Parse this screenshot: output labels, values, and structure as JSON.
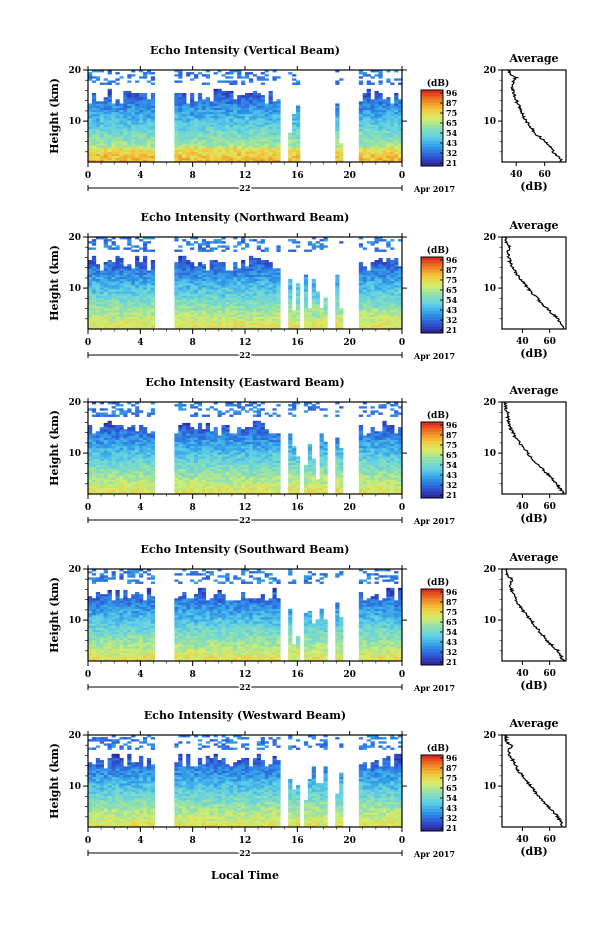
{
  "figure": {
    "xlabel": "Local Time",
    "date_main": "22",
    "date_suffix": "Apr 2017",
    "ylabel": "Height (km)",
    "colorbar_unit": "(dB)",
    "avg_title": "Average",
    "avg_xlabel": "(dB)"
  },
  "colors": {
    "colormap": [
      "#2a1f8f",
      "#2f58d8",
      "#2f9ae8",
      "#5fd0e8",
      "#8ee0b0",
      "#d6ee6a",
      "#f3c63a",
      "#ee7a24",
      "#d8201c"
    ]
  },
  "chart_data": [
    {
      "type": "heatmap",
      "title": "Echo Intensity (Vertical Beam)",
      "x_ticks": [
        "0",
        "4",
        "8",
        "12",
        "16",
        "20",
        "0"
      ],
      "y_ticks": [
        "20",
        "10"
      ],
      "xlim": [
        0,
        24
      ],
      "ylim": [
        2,
        20
      ],
      "colorbar_ticks": [
        "96",
        "87",
        "75",
        "65",
        "54",
        "43",
        "32",
        "21"
      ],
      "profile": {
        "type": "line",
        "x_ticks": [
          "40",
          "60"
        ],
        "y_ticks": [
          "20",
          "10"
        ],
        "xlim": [
          30,
          75
        ],
        "ylim": [
          2,
          20
        ],
        "x": [
          72,
          70,
          66,
          64,
          60,
          56,
          52,
          50,
          47,
          45,
          44,
          42,
          40,
          39,
          38,
          37,
          38,
          40,
          36,
          35
        ],
        "y": [
          2,
          3,
          4,
          5,
          6,
          7,
          8,
          9,
          10,
          11,
          12,
          13,
          14,
          15,
          16,
          17,
          18,
          18.5,
          19,
          20
        ]
      }
    },
    {
      "type": "heatmap",
      "title": "Echo Intensity (Northward Beam)",
      "x_ticks": [
        "0",
        "4",
        "8",
        "12",
        "16",
        "20",
        "0"
      ],
      "y_ticks": [
        "20",
        "10"
      ],
      "xlim": [
        0,
        24
      ],
      "ylim": [
        2,
        20
      ],
      "colorbar_ticks": [
        "96",
        "87",
        "75",
        "65",
        "54",
        "43",
        "32",
        "21"
      ],
      "profile": {
        "type": "line",
        "x_ticks": [
          "40",
          "60"
        ],
        "y_ticks": [
          "20",
          "10"
        ],
        "xlim": [
          25,
          72
        ],
        "ylim": [
          2,
          20
        ],
        "x": [
          70,
          68,
          66,
          62,
          58,
          54,
          51,
          47,
          44,
          41,
          38,
          35,
          33,
          31,
          30,
          29,
          31,
          29,
          28,
          27
        ],
        "y": [
          2,
          3,
          4,
          5,
          6,
          7,
          8,
          9,
          10,
          11,
          12,
          13,
          14,
          15,
          16,
          17,
          18,
          18.5,
          19,
          20
        ]
      }
    },
    {
      "type": "heatmap",
      "title": "Echo Intensity (Eastward Beam)",
      "x_ticks": [
        "0",
        "4",
        "8",
        "12",
        "16",
        "20",
        "0"
      ],
      "y_ticks": [
        "20",
        "10"
      ],
      "xlim": [
        0,
        24
      ],
      "ylim": [
        2,
        20
      ],
      "colorbar_ticks": [
        "96",
        "87",
        "75",
        "65",
        "54",
        "43",
        "32",
        "21"
      ],
      "profile": {
        "type": "line",
        "x_ticks": [
          "40",
          "60"
        ],
        "y_ticks": [
          "20",
          "10"
        ],
        "xlim": [
          25,
          72
        ],
        "ylim": [
          2,
          20
        ],
        "x": [
          70,
          68,
          65,
          62,
          58,
          54,
          50,
          47,
          44,
          41,
          38,
          35,
          33,
          31,
          30,
          29,
          30,
          28,
          28,
          27
        ],
        "y": [
          2,
          3,
          4,
          5,
          6,
          7,
          8,
          9,
          10,
          11,
          12,
          13,
          14,
          15,
          16,
          17,
          18,
          18.5,
          19,
          20
        ]
      }
    },
    {
      "type": "heatmap",
      "title": "Echo Intensity (Southward Beam)",
      "x_ticks": [
        "0",
        "4",
        "8",
        "12",
        "16",
        "20",
        "0"
      ],
      "y_ticks": [
        "20",
        "10"
      ],
      "xlim": [
        0,
        24
      ],
      "ylim": [
        2,
        20
      ],
      "colorbar_ticks": [
        "96",
        "87",
        "75",
        "65",
        "54",
        "43",
        "32",
        "21"
      ],
      "profile": {
        "type": "line",
        "x_ticks": [
          "40",
          "60"
        ],
        "y_ticks": [
          "20",
          "10"
        ],
        "xlim": [
          25,
          72
        ],
        "ylim": [
          2,
          20
        ],
        "x": [
          70,
          68,
          66,
          62,
          58,
          55,
          52,
          49,
          46,
          43,
          40,
          37,
          35,
          34,
          32,
          31,
          33,
          30,
          29,
          29
        ],
        "y": [
          2,
          3,
          4,
          5,
          6,
          7,
          8,
          9,
          10,
          11,
          12,
          13,
          14,
          15,
          16,
          17,
          18,
          18.5,
          19,
          20
        ]
      }
    },
    {
      "type": "heatmap",
      "title": "Echo Intensity (Westward Beam)",
      "x_ticks": [
        "0",
        "4",
        "8",
        "12",
        "16",
        "20",
        "0"
      ],
      "y_ticks": [
        "20",
        "10"
      ],
      "xlim": [
        0,
        24
      ],
      "ylim": [
        2,
        20
      ],
      "colorbar_ticks": [
        "96",
        "87",
        "75",
        "65",
        "54",
        "43",
        "32",
        "21"
      ],
      "profile": {
        "type": "line",
        "x_ticks": [
          "40",
          "60"
        ],
        "y_ticks": [
          "20",
          "10"
        ],
        "xlim": [
          25,
          72
        ],
        "ylim": [
          2,
          20
        ],
        "x": [
          70,
          68,
          66,
          63,
          59,
          55,
          52,
          49,
          46,
          43,
          40,
          37,
          35,
          33,
          31,
          30,
          32,
          29,
          28,
          28
        ],
        "y": [
          2,
          3,
          4,
          5,
          6,
          7,
          8,
          9,
          10,
          11,
          12,
          13,
          14,
          15,
          16,
          17,
          18,
          18.5,
          19,
          20
        ]
      }
    }
  ]
}
